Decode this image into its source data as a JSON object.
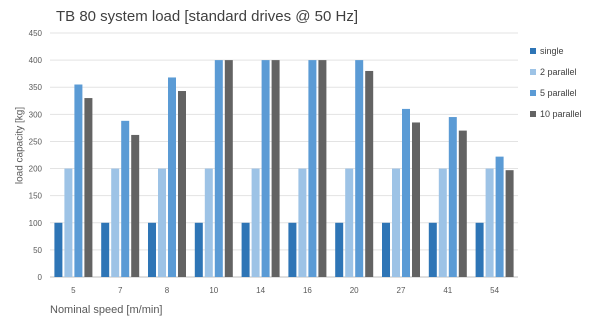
{
  "chart_data": {
    "type": "bar",
    "title": "TB 80 system load [standard drives @ 50 Hz]",
    "xlabel": "Nominal speed [m/min]",
    "ylabel": "load capacity [kg]",
    "ylim": [
      0,
      450
    ],
    "yticks": [
      0,
      50,
      100,
      150,
      200,
      250,
      300,
      350,
      400,
      450
    ],
    "categories": [
      "5",
      "7",
      "8",
      "10",
      "14",
      "16",
      "20",
      "27",
      "41",
      "54"
    ],
    "series": [
      {
        "name": "single",
        "color": "#2e75b6",
        "values": [
          100,
          100,
          100,
          100,
          100,
          100,
          100,
          100,
          100,
          100
        ]
      },
      {
        "name": "2 parallel",
        "color": "#9dc3e6",
        "values": [
          200,
          200,
          200,
          200,
          200,
          200,
          200,
          200,
          200,
          200
        ]
      },
      {
        "name": "5 parallel",
        "color": "#5b9bd5",
        "values": [
          355,
          288,
          368,
          400,
          400,
          400,
          400,
          310,
          295,
          222
        ]
      },
      {
        "name": "10 parallel",
        "color": "#636363",
        "values": [
          330,
          262,
          343,
          400,
          400,
          400,
          380,
          285,
          270,
          197
        ]
      }
    ],
    "grid": true,
    "legend_position": "right"
  }
}
